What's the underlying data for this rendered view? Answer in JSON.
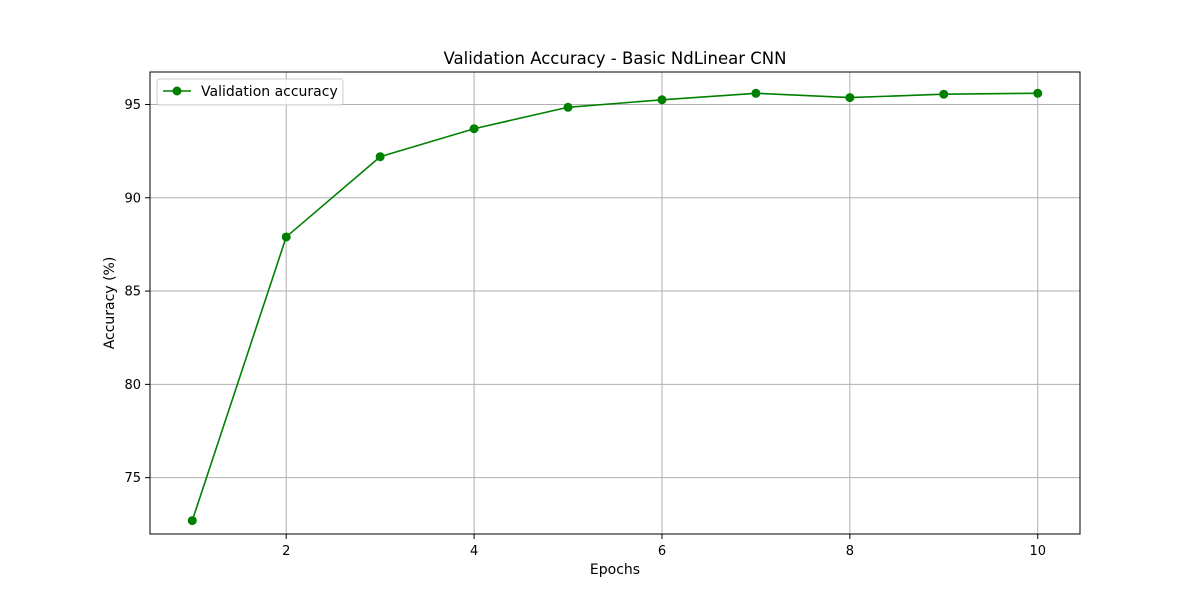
{
  "chart_data": {
    "type": "line",
    "title": "Validation Accuracy - Basic NdLinear CNN",
    "xlabel": "Epochs",
    "ylabel": "Accuracy (%)",
    "xlim": [
      0.55,
      10.45
    ],
    "ylim": [
      71.98,
      96.74
    ],
    "xticks": [
      2,
      4,
      6,
      8,
      10
    ],
    "yticks": [
      75,
      80,
      85,
      90,
      95
    ],
    "grid": true,
    "legend_position": "upper-left",
    "series": [
      {
        "name": "Validation accuracy",
        "color": "#008000",
        "marker": "circle",
        "x": [
          1,
          2,
          3,
          4,
          5,
          6,
          7,
          8,
          9,
          10
        ],
        "y": [
          72.7,
          87.9,
          92.2,
          93.7,
          94.85,
          95.25,
          95.6,
          95.37,
          95.55,
          95.6
        ]
      }
    ]
  }
}
